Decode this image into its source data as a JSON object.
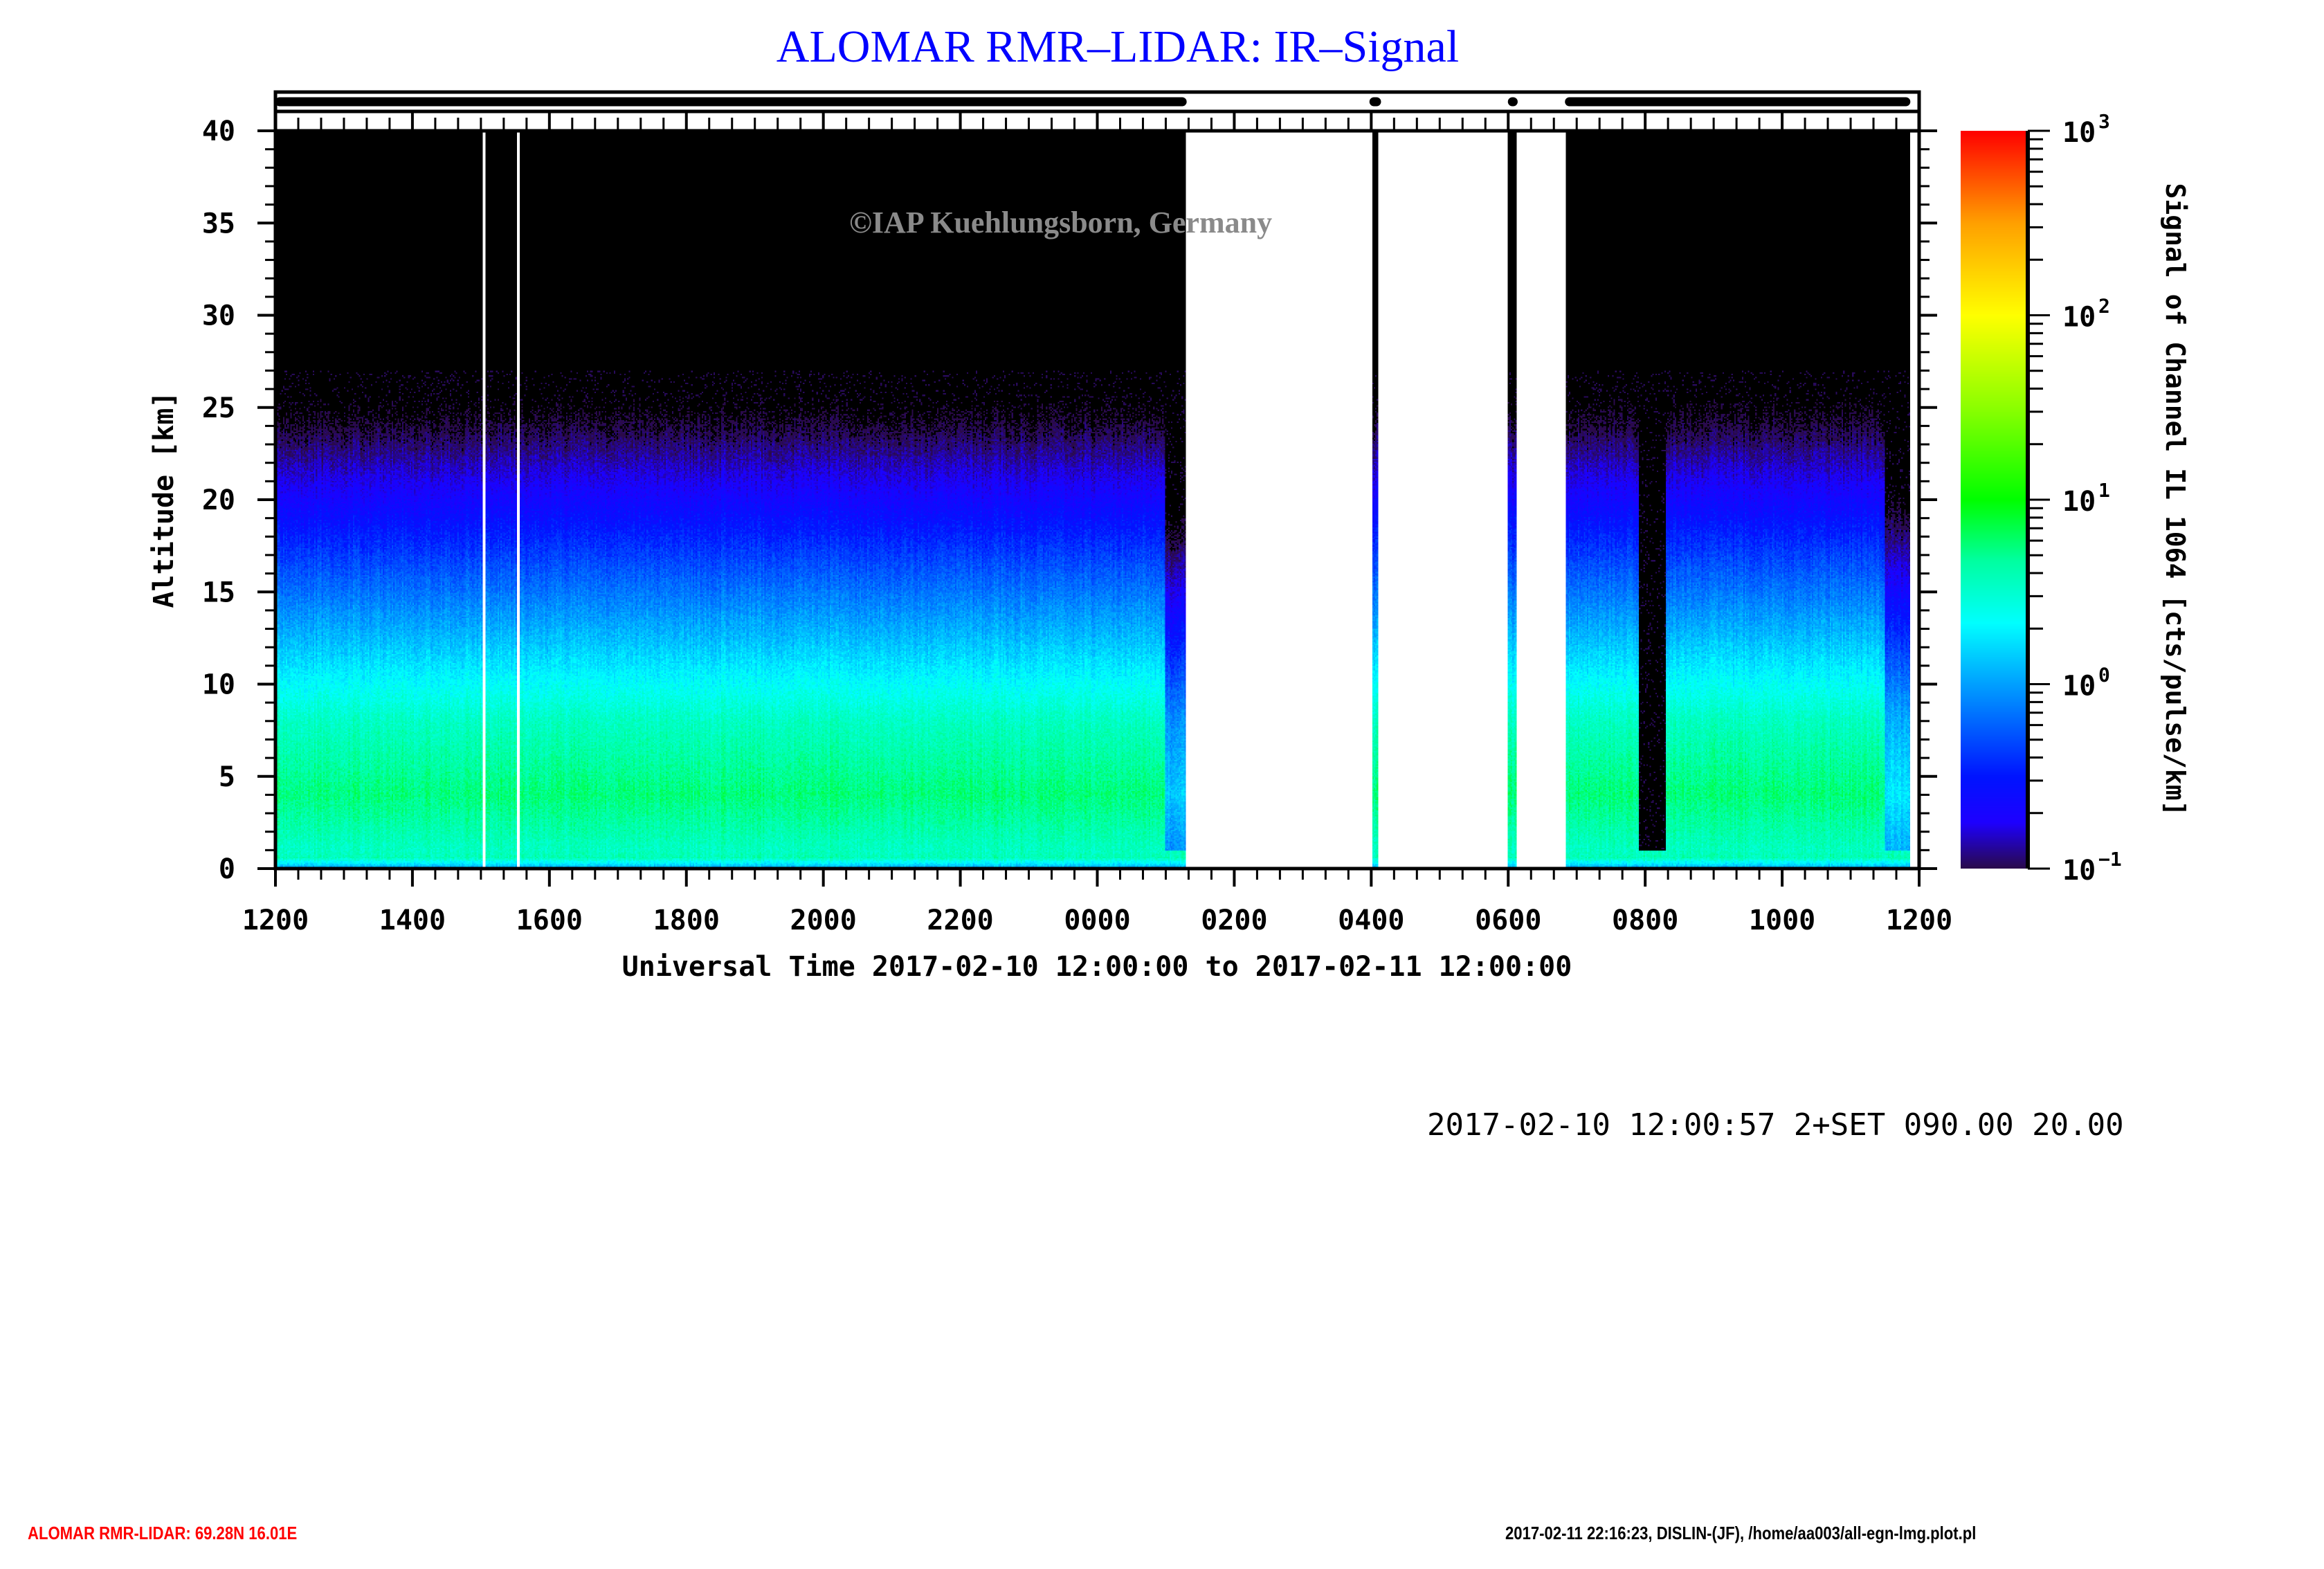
{
  "title": "ALOMAR RMR–LIDAR: IR–Signal",
  "watermark": "©IAP Kuehlungsborn, Germany",
  "info_line": "2017-02-10 12:00:57 2+SET 090.00 20.00",
  "footer": {
    "left": "ALOMAR RMR-LIDAR: 69.28N 16.01E",
    "right": "2017-02-11 22:16:23, DISLIN-(JF), /home/aa003/all-egn-lmg.plot.pl"
  },
  "chart_data": {
    "type": "heatmap",
    "title": "ALOMAR RMR–LIDAR: IR–Signal",
    "xlabel": "Universal Time 2017-02-10 12:00:00 to 2017-02-11 12:00:00",
    "ylabel": "Altitude [km]",
    "xlim_hours_ut": [
      12,
      36
    ],
    "xtick_labels": [
      "1200",
      "1400",
      "1600",
      "1800",
      "2000",
      "2200",
      "0000",
      "0200",
      "0400",
      "0600",
      "0800",
      "1000",
      "1200"
    ],
    "ylim": [
      0,
      40
    ],
    "yticks": [
      0,
      5,
      10,
      15,
      20,
      25,
      30,
      35,
      40
    ],
    "data_coverage_ut": [
      [
        "12:00",
        "01:18"
      ],
      [
        "04:01",
        "04:06"
      ],
      [
        "06:00",
        "06:08"
      ],
      [
        "06:50",
        "11:52"
      ]
    ],
    "colorbar": {
      "label": "Signal of Channel IL 1064 [cts/pulse/km]",
      "scale": "log",
      "range": [
        0.1,
        1000
      ],
      "ticks": [
        {
          "base": "10",
          "exp": "3"
        },
        {
          "base": "10",
          "exp": "2"
        },
        {
          "base": "10",
          "exp": "1"
        },
        {
          "base": "10",
          "exp": "0"
        },
        {
          "base": "10",
          "exp": "−1"
        }
      ],
      "colors": [
        "#2a0a4a",
        "#1400ff",
        "#00a0ff",
        "#00ffff",
        "#00ff00",
        "#ffff00",
        "#ffa000",
        "#ff0000"
      ]
    },
    "profile_log10_signal": {
      "altitude_km": [
        0,
        0.6,
        1,
        4,
        8,
        12,
        20,
        24,
        27
      ],
      "value": [
        0.0,
        0.6,
        0.55,
        0.75,
        0.55,
        0.15,
        -0.65,
        -1.05,
        -1.3
      ]
    }
  }
}
